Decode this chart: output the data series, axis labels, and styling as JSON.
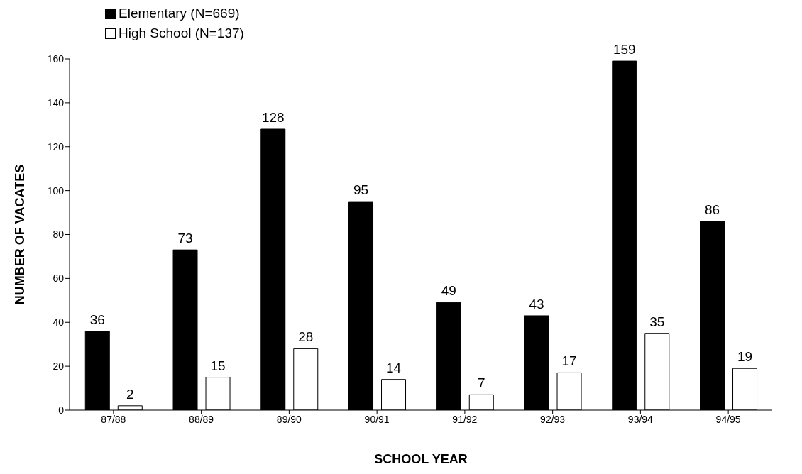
{
  "chart_data": {
    "type": "bar",
    "xlabel": "SCHOOL YEAR",
    "ylabel": "NUMBER OF VACATES",
    "categories": [
      "87/88",
      "88/89",
      "89/90",
      "90/91",
      "91/92",
      "92/93",
      "93/94",
      "94/95"
    ],
    "series": [
      {
        "name": "Elementary (N=669)",
        "color": "#000000",
        "values": [
          36,
          73,
          128,
          95,
          49,
          43,
          159,
          86
        ]
      },
      {
        "name": "High School (N=137)",
        "color": "#ffffff",
        "values": [
          2,
          15,
          28,
          14,
          7,
          17,
          35,
          19
        ]
      }
    ],
    "ylim": [
      0,
      160
    ],
    "yticks": [
      0,
      20,
      40,
      60,
      80,
      100,
      120,
      140,
      160
    ],
    "grid": false,
    "legend": "top",
    "data_labels": true
  }
}
